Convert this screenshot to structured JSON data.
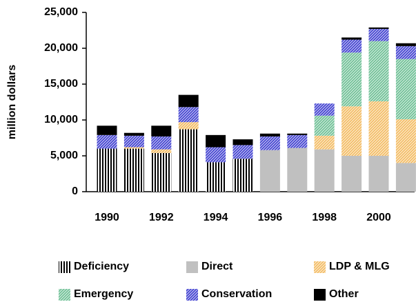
{
  "chart_data": {
    "type": "bar",
    "stacked": true,
    "y_label": "million dollars",
    "categories": [
      "1990",
      null,
      "1992",
      null,
      "1994",
      null,
      "1996",
      null,
      "1998",
      null,
      "2000",
      null
    ],
    "ylim": [
      0,
      25000
    ],
    "yticks": [
      0,
      {
        "value": 5000,
        "label": "5,000"
      },
      {
        "value": 10000,
        "label": "10,000"
      },
      {
        "value": 15000,
        "label": "15,000"
      },
      {
        "value": 20000,
        "label": "20,000"
      },
      {
        "value": 25000,
        "label": "25,000"
      }
    ],
    "series": [
      {
        "name": "Deficiency",
        "color": "#000000",
        "pattern": "vertical",
        "values": [
          6000,
          6000,
          5400,
          8700,
          4100,
          4600,
          0,
          0,
          0,
          0,
          0,
          0
        ]
      },
      {
        "name": "Direct",
        "color": "#c0c0c0",
        "pattern": "solid",
        "values": [
          0,
          0,
          0,
          0,
          0,
          0,
          5800,
          6100,
          5900,
          5000,
          5000,
          4000
        ]
      },
      {
        "name": "LDP & MLG",
        "color": "#f2b552",
        "pattern": "diagonal",
        "values": [
          0,
          200,
          500,
          1000,
          0,
          0,
          0,
          0,
          1900,
          6900,
          7600,
          6100
        ]
      },
      {
        "name": "Emergency",
        "color": "#5fb98a",
        "pattern": "diagonal",
        "values": [
          0,
          0,
          0,
          0,
          0,
          0,
          0,
          0,
          2800,
          7500,
          8400,
          8400
        ]
      },
      {
        "name": "Conservation",
        "color": "#2d2dcc",
        "pattern": "diagonal",
        "values": [
          1900,
          1600,
          1800,
          2100,
          2100,
          1900,
          1900,
          1800,
          1700,
          1800,
          1700,
          1800
        ]
      },
      {
        "name": "Other",
        "color": "#000000",
        "pattern": "solid",
        "values": [
          1300,
          400,
          1500,
          1700,
          1700,
          800,
          400,
          200,
          0,
          300,
          200,
          400
        ]
      }
    ]
  }
}
